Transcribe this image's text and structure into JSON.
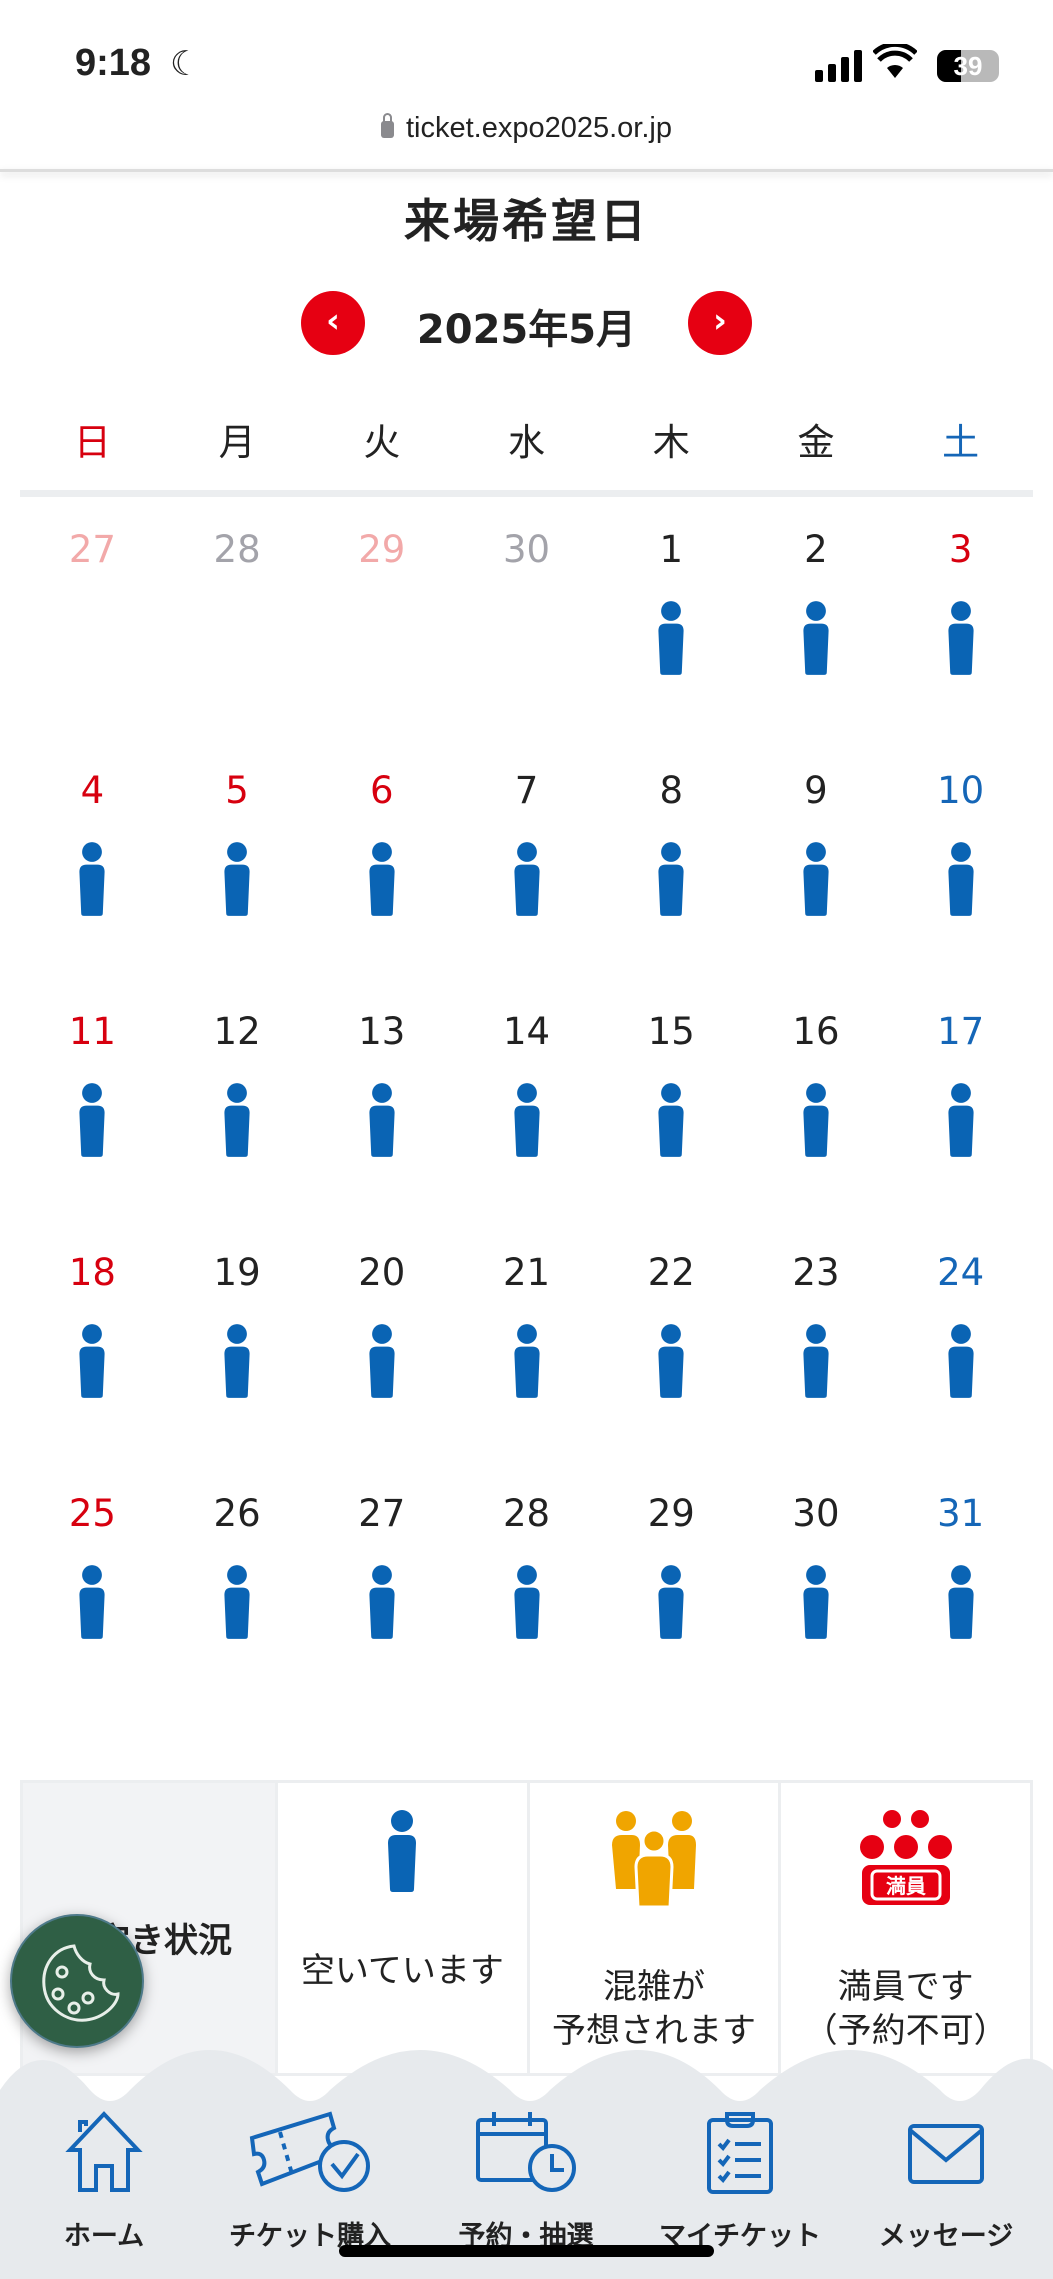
{
  "status_bar": {
    "time": "9:18",
    "battery": "39",
    "battery_level": 39
  },
  "browser": {
    "url": "ticket.expo2025.or.jp"
  },
  "page": {
    "title": "来場希望日"
  },
  "calendar": {
    "month_label": "2025年5月",
    "prev_icon": "chevron-left-icon",
    "next_icon": "chevron-right-icon",
    "weekdays": [
      "日",
      "月",
      "火",
      "水",
      "木",
      "金",
      "土"
    ],
    "colors": {
      "sunday": "#d7000f",
      "saturday": "#1566b7",
      "available": "#0a64b4"
    },
    "weeks": [
      [
        {
          "day": "27",
          "type": "prevhol",
          "status": ""
        },
        {
          "day": "28",
          "type": "prev",
          "status": ""
        },
        {
          "day": "29",
          "type": "prevhol",
          "status": ""
        },
        {
          "day": "30",
          "type": "prev",
          "status": ""
        },
        {
          "day": "1",
          "type": "normal",
          "status": "available"
        },
        {
          "day": "2",
          "type": "normal",
          "status": "available"
        },
        {
          "day": "3",
          "type": "sun",
          "status": "available"
        }
      ],
      [
        {
          "day": "4",
          "type": "sun",
          "status": "available"
        },
        {
          "day": "5",
          "type": "sun",
          "status": "available"
        },
        {
          "day": "6",
          "type": "sun",
          "status": "available"
        },
        {
          "day": "7",
          "type": "normal",
          "status": "available"
        },
        {
          "day": "8",
          "type": "normal",
          "status": "available"
        },
        {
          "day": "9",
          "type": "normal",
          "status": "available"
        },
        {
          "day": "10",
          "type": "sat",
          "status": "available"
        }
      ],
      [
        {
          "day": "11",
          "type": "sun",
          "status": "available"
        },
        {
          "day": "12",
          "type": "normal",
          "status": "available"
        },
        {
          "day": "13",
          "type": "normal",
          "status": "available"
        },
        {
          "day": "14",
          "type": "normal",
          "status": "available"
        },
        {
          "day": "15",
          "type": "normal",
          "status": "available"
        },
        {
          "day": "16",
          "type": "normal",
          "status": "available"
        },
        {
          "day": "17",
          "type": "sat",
          "status": "available"
        }
      ],
      [
        {
          "day": "18",
          "type": "sun",
          "status": "available"
        },
        {
          "day": "19",
          "type": "normal",
          "status": "available"
        },
        {
          "day": "20",
          "type": "normal",
          "status": "available"
        },
        {
          "day": "21",
          "type": "normal",
          "status": "available"
        },
        {
          "day": "22",
          "type": "normal",
          "status": "available"
        },
        {
          "day": "23",
          "type": "normal",
          "status": "available"
        },
        {
          "day": "24",
          "type": "sat",
          "status": "available"
        }
      ],
      [
        {
          "day": "25",
          "type": "sun",
          "status": "available"
        },
        {
          "day": "26",
          "type": "normal",
          "status": "available"
        },
        {
          "day": "27",
          "type": "normal",
          "status": "available"
        },
        {
          "day": "28",
          "type": "normal",
          "status": "available"
        },
        {
          "day": "29",
          "type": "normal",
          "status": "available"
        },
        {
          "day": "30",
          "type": "normal",
          "status": "available"
        },
        {
          "day": "31",
          "type": "sat",
          "status": "available"
        }
      ]
    ]
  },
  "legend": {
    "title": "空き状況",
    "items": [
      {
        "icon": "person-available-icon",
        "label_lines": [
          "空いています"
        ],
        "color": "#0a64b4"
      },
      {
        "icon": "people-crowded-icon",
        "label_lines": [
          "混雑が",
          "予想されます"
        ],
        "color": "#f0a500"
      },
      {
        "icon": "full-capacity-icon",
        "label_lines": [
          "満員です",
          "（予約不可）"
        ],
        "color": "#e60012",
        "badge": "満員"
      }
    ]
  },
  "bottom_nav": {
    "items": [
      {
        "label": "ホーム",
        "icon": "home-icon"
      },
      {
        "label": "チケット購入",
        "icon": "ticket-icon"
      },
      {
        "label": "予約・抽選",
        "icon": "calendar-clock-icon"
      },
      {
        "label": "マイチケット",
        "icon": "clipboard-checklist-icon"
      },
      {
        "label": "メッセージ",
        "icon": "envelope-icon"
      }
    ]
  }
}
